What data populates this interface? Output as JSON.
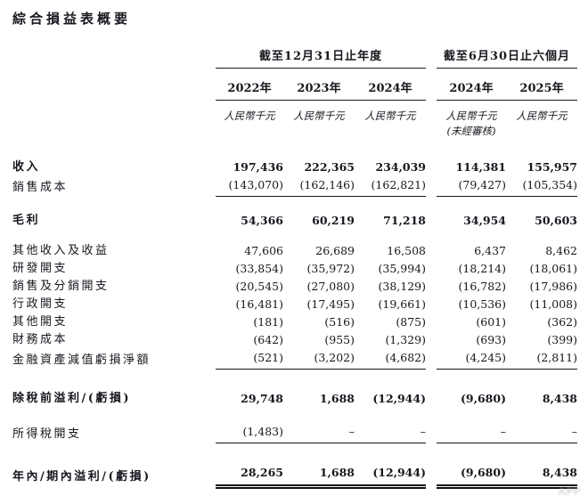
{
  "title": "綜合損益表概要",
  "table": {
    "groups": [
      {
        "label": "截至12月31日止年度"
      },
      {
        "label": "截至6月30日止六個月"
      }
    ],
    "years": [
      "2022年",
      "2023年",
      "2024年",
      "2024年",
      "2025年"
    ],
    "unit_label": "人民幣千元",
    "unaudited_note": "(未經審核)",
    "rows": [
      {
        "label": "收入",
        "values": [
          "197,436",
          "222,365",
          "234,039",
          "114,381",
          "155,957"
        ]
      },
      {
        "label": "銷售成本",
        "values": [
          "(143,070)",
          "(162,146)",
          "(162,821)",
          "(79,427)",
          "(105,354)"
        ]
      },
      {
        "label": "毛利",
        "values": [
          "54,366",
          "60,219",
          "71,218",
          "34,954",
          "50,603"
        ]
      },
      {
        "label": "其他收入及收益",
        "values": [
          "47,606",
          "26,689",
          "16,508",
          "6,437",
          "8,462"
        ]
      },
      {
        "label": "研發開支",
        "values": [
          "(33,854)",
          "(35,972)",
          "(35,994)",
          "(18,214)",
          "(18,061)"
        ]
      },
      {
        "label": "銷售及分銷開支",
        "values": [
          "(20,545)",
          "(27,080)",
          "(38,129)",
          "(16,782)",
          "(17,986)"
        ]
      },
      {
        "label": "行政開支",
        "values": [
          "(16,481)",
          "(17,495)",
          "(19,661)",
          "(10,536)",
          "(11,008)"
        ]
      },
      {
        "label": "其他開支",
        "values": [
          "(181)",
          "(516)",
          "(875)",
          "(601)",
          "(362)"
        ]
      },
      {
        "label": "財務成本",
        "values": [
          "(642)",
          "(955)",
          "(1,329)",
          "(693)",
          "(399)"
        ]
      },
      {
        "label": "金融資產減值虧損淨額",
        "values": [
          "(521)",
          "(3,202)",
          "(4,682)",
          "(4,245)",
          "(2,811)"
        ]
      },
      {
        "label": "除稅前溢利/(虧損)",
        "values": [
          "29,748",
          "1,688",
          "(12,944)",
          "(9,680)",
          "8,438"
        ]
      },
      {
        "label": "所得稅開支",
        "values": [
          "(1,483)",
          "–",
          "–",
          "–",
          "–"
        ]
      },
      {
        "label": "年內/期內溢利/(虧損)",
        "values": [
          "28,265",
          "1,688",
          "(12,944)",
          "(9,680)",
          "8,438"
        ]
      }
    ]
  },
  "watermark": "APP",
  "colors": {
    "text": "#17171f",
    "rule": "#15151d",
    "watermark": "#b9b9b9"
  }
}
